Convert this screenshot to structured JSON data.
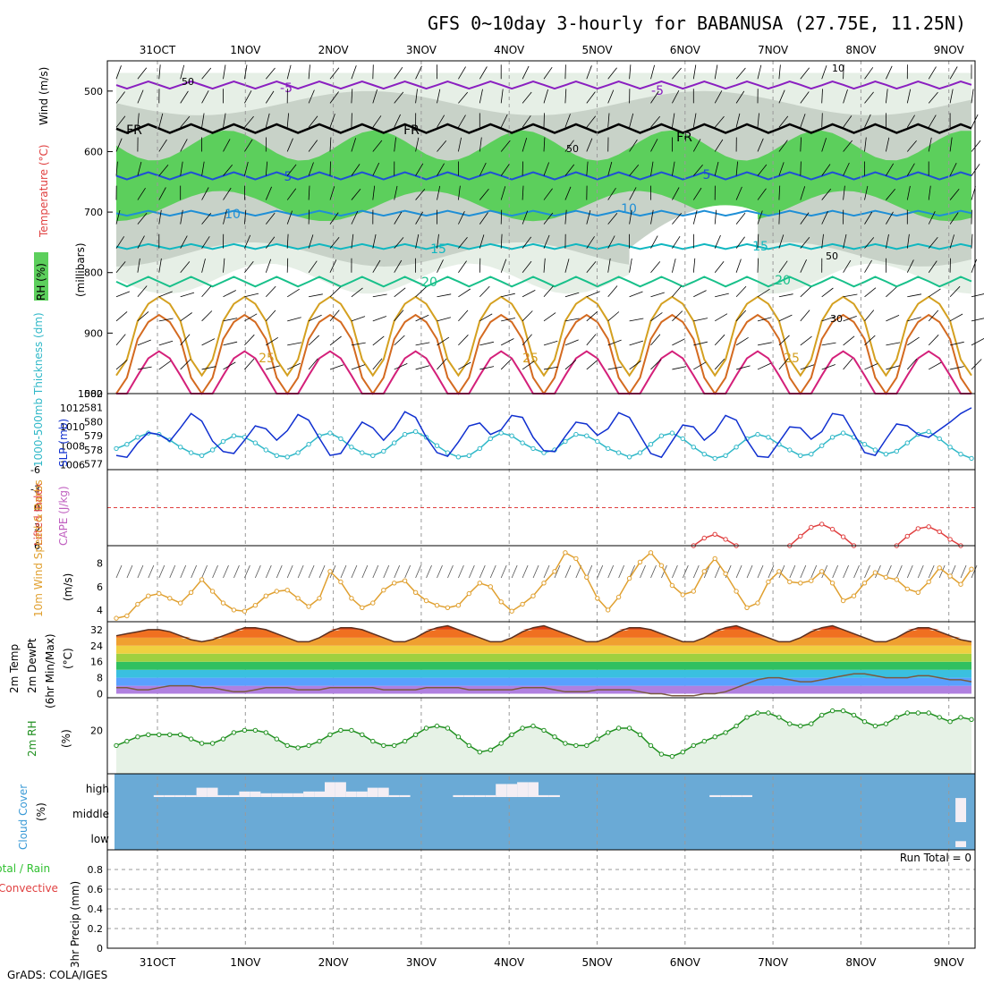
{
  "title": "GFS 0~10day 3-hourly for BABANUSA (27.75E, 11.25N)",
  "credit": "GrADS: COLA/IGES",
  "dates": [
    "31OCT",
    "1NOV",
    "2NOV",
    "3NOV",
    "4NOV",
    "5NOV",
    "6NOV",
    "7NOV",
    "8NOV",
    "9NOV"
  ],
  "colors": {
    "rh_green": "#5ccf5c",
    "rh_grey": "#c8d2c8",
    "rh_light": "#e6efe6",
    "temp_m5": "#8a1fc0",
    "temp_fr": "#000000",
    "temp_5": "#1f4fd6",
    "temp_10": "#1f8fd6",
    "temp_15": "#10b7c0",
    "temp_20": "#18c08a",
    "temp_25": "#d4a020",
    "temp_30": "#d46a20",
    "temp_35": "#d4207a",
    "thickness": "#30b8c8",
    "slp": "#1030d0",
    "lifted": "#e04040",
    "cape": "#c060c0",
    "wind10": "#e0a030",
    "rh2m": "#209020",
    "cloud_bg": "#6aaad6",
    "cloud_fill": "#f4eef4"
  },
  "panels": {
    "upper": {
      "label_rh": "RH (%)",
      "label_temp": "Temperature (°C)",
      "label_wind": "Wind (m/s)",
      "label_mb": "(millibars)",
      "yticks": [
        "500",
        "600",
        "700",
        "800",
        "900",
        "1000"
      ],
      "contour_labels": [
        "-5",
        "-5",
        "FR",
        "FR",
        "FR",
        "5",
        "5",
        "10",
        "10",
        "15",
        "15",
        "20",
        "20",
        "25",
        "25",
        "25",
        "50",
        "50",
        "50",
        "30",
        "10"
      ]
    },
    "thickness": {
      "label_thick": "1000-500mb Thickness (dm)",
      "label_slp": "SLP (mb)",
      "yticks_left": [
        "582",
        "581",
        "580",
        "579",
        "578",
        "577"
      ],
      "yticks_right": [
        "1012",
        "1010",
        "1008",
        "1006"
      ]
    },
    "stability": {
      "label_li": "Lifted Index",
      "label_cape": "CAPE (J/kg)",
      "yticks": [
        "-6",
        "-3",
        "0",
        "3",
        "6"
      ]
    },
    "wind10": {
      "label": "10m Wind Speed & Barbs",
      "unit": "(m/s)",
      "yticks": [
        "8",
        "6",
        "4"
      ]
    },
    "temp2m": {
      "label1": "2m Temp",
      "label2": "2m DewPt",
      "label3": "(6hr Min/Max)",
      "unit": "(°C)",
      "yticks": [
        "32",
        "24",
        "16",
        "8",
        "0"
      ]
    },
    "rh2m": {
      "label": "2m RH",
      "unit": "(%)",
      "yticks": [
        "20"
      ]
    },
    "cloud": {
      "label": "Cloud Cover",
      "unit": "(%)",
      "levels": [
        "high",
        "middle",
        "low"
      ]
    },
    "precip": {
      "label1": "Total / Rain",
      "label2": "Convective",
      "label3": "3hr Precip (mm)",
      "yticks": [
        "0.8",
        "0.6",
        "0.4",
        "0.2",
        "0"
      ],
      "run_total": "Run Total = 0"
    }
  },
  "chart_data": {
    "type": "line",
    "x_start": "2023-10-30 12Z",
    "x_step_hours": 3,
    "thickness_dm": [
      578.1,
      578.4,
      578.9,
      579.2,
      579.1,
      578.7,
      578.2,
      577.8,
      577.6,
      578.0,
      578.6,
      579.0,
      578.9,
      578.5,
      578.0,
      577.6,
      577.5,
      577.8,
      578.4,
      579.0,
      579.2,
      578.8,
      578.2,
      577.8,
      577.6,
      577.9,
      578.5,
      579.1,
      579.3,
      578.9,
      578.3,
      577.8,
      577.5,
      577.6,
      578.1,
      578.8,
      579.2,
      579.0,
      578.5,
      578.1,
      577.8,
      578.0,
      578.6,
      579.1,
      579.0,
      578.6,
      578.1,
      577.8,
      577.5,
      577.8,
      578.4,
      579.0,
      579.2,
      578.8,
      578.2,
      577.7,
      577.4,
      577.6,
      578.2,
      578.8,
      579.1,
      578.9,
      578.4,
      578.0,
      577.6,
      577.7,
      578.3,
      578.9,
      579.2,
      578.9,
      578.4,
      578.0,
      577.7,
      577.9,
      578.5,
      579.1,
      579.3,
      578.8,
      578.2,
      577.7,
      577.4
    ],
    "slp_mb": [
      1007.0,
      1006.8,
      1008.3,
      1009.4,
      1009.2,
      1008.5,
      1009.9,
      1011.4,
      1010.6,
      1008.5,
      1007.4,
      1007.2,
      1008.6,
      1010.1,
      1009.8,
      1008.6,
      1009.6,
      1011.3,
      1010.7,
      1008.8,
      1007.0,
      1007.2,
      1008.9,
      1010.5,
      1009.9,
      1008.6,
      1009.8,
      1011.6,
      1011.0,
      1008.9,
      1007.3,
      1006.9,
      1008.4,
      1010.1,
      1010.4,
      1009.2,
      1009.7,
      1011.2,
      1011.0,
      1008.9,
      1007.5,
      1007.4,
      1009.0,
      1010.5,
      1010.3,
      1009.1,
      1009.8,
      1011.5,
      1011.0,
      1009.1,
      1007.2,
      1006.8,
      1008.5,
      1010.2,
      1010.0,
      1008.6,
      1009.5,
      1011.2,
      1010.7,
      1008.6,
      1006.9,
      1006.8,
      1008.4,
      1010.0,
      1009.9,
      1008.7,
      1009.5,
      1011.4,
      1011.2,
      1009.3,
      1007.3,
      1007.0,
      1008.7,
      1010.3,
      1010.1,
      1009.2,
      1008.9,
      1009.7,
      1010.5,
      1011.4,
      1012.0
    ],
    "lifted_index": [
      null,
      null,
      null,
      null,
      null,
      null,
      null,
      null,
      null,
      null,
      null,
      null,
      null,
      null,
      null,
      null,
      null,
      null,
      null,
      null,
      null,
      null,
      null,
      null,
      null,
      null,
      null,
      null,
      null,
      null,
      null,
      null,
      null,
      null,
      null,
      null,
      null,
      null,
      null,
      null,
      null,
      null,
      null,
      null,
      null,
      null,
      null,
      null,
      null,
      null,
      null,
      null,
      null,
      null,
      6,
      4.8,
      4.2,
      5.0,
      6,
      null,
      null,
      null,
      null,
      6,
      4.5,
      3.1,
      2.6,
      3.4,
      4.6,
      6,
      null,
      null,
      null,
      6,
      4.5,
      3.3,
      3.0,
      3.8,
      5.0,
      6,
      null
    ],
    "wind10_ms": [
      3.3,
      3.5,
      4.5,
      5.2,
      5.4,
      5.0,
      4.6,
      5.5,
      6.6,
      5.6,
      4.6,
      4.0,
      3.9,
      4.4,
      5.2,
      5.6,
      5.7,
      5.0,
      4.3,
      5.0,
      7.3,
      6.4,
      5.0,
      4.2,
      4.6,
      5.7,
      6.3,
      6.5,
      5.5,
      4.8,
      4.4,
      4.2,
      4.4,
      5.4,
      6.3,
      6.0,
      4.7,
      3.9,
      4.5,
      5.2,
      6.3,
      7.3,
      8.9,
      8.4,
      6.8,
      5.0,
      4.0,
      5.1,
      6.7,
      8.1,
      8.9,
      7.8,
      6.1,
      5.3,
      5.6,
      7.3,
      8.4,
      7.1,
      5.6,
      4.2,
      4.6,
      6.4,
      7.3,
      6.4,
      6.3,
      6.5,
      7.3,
      6.3,
      4.8,
      5.2,
      6.3,
      7.2,
      6.8,
      6.6,
      5.8,
      5.5,
      6.4,
      7.6,
      6.9,
      6.2,
      7.5
    ],
    "temp2m_c": [
      29,
      30,
      31,
      32,
      32,
      31,
      29,
      27,
      26,
      27,
      29,
      31,
      33,
      33,
      32,
      30,
      28,
      26,
      26,
      28,
      31,
      33,
      33,
      32,
      30,
      28,
      26,
      26,
      28,
      31,
      33,
      34,
      32,
      30,
      28,
      26,
      26,
      28,
      31,
      33,
      34,
      32,
      30,
      28,
      26,
      26,
      28,
      31,
      33,
      33,
      32,
      30,
      28,
      26,
      26,
      28,
      31,
      33,
      34,
      32,
      30,
      28,
      26,
      26,
      28,
      31,
      33,
      34,
      32,
      30,
      28,
      26,
      26,
      28,
      31,
      33,
      33,
      31,
      29,
      27,
      26
    ],
    "dewpt2m_c": [
      3,
      3,
      2,
      2,
      3,
      4,
      4,
      4,
      3,
      3,
      2,
      1,
      1,
      2,
      3,
      3,
      3,
      2,
      2,
      2,
      3,
      3,
      3,
      3,
      3,
      2,
      2,
      2,
      2,
      3,
      3,
      3,
      3,
      2,
      2,
      2,
      2,
      2,
      3,
      3,
      3,
      2,
      1,
      1,
      1,
      2,
      2,
      2,
      2,
      1,
      0,
      0,
      -1,
      -1,
      -1,
      0,
      0,
      1,
      3,
      5,
      7,
      8,
      8,
      7,
      6,
      6,
      7,
      8,
      9,
      10,
      10,
      9,
      8,
      8,
      8,
      9,
      9,
      8,
      7,
      7,
      6
    ],
    "rh2m_pct": [
      13,
      15,
      17,
      18,
      18,
      18,
      18,
      16,
      14,
      14,
      16,
      19,
      20,
      20,
      19,
      16,
      13,
      12,
      13,
      15,
      18,
      20,
      20,
      18,
      15,
      13,
      13,
      15,
      18,
      21,
      22,
      21,
      17,
      13,
      10,
      11,
      14,
      18,
      21,
      22,
      20,
      17,
      14,
      13,
      13,
      16,
      19,
      21,
      21,
      18,
      13,
      9,
      8,
      10,
      13,
      15,
      17,
      19,
      22,
      26,
      28,
      28,
      26,
      23,
      22,
      23,
      27,
      29,
      29,
      27,
      24,
      22,
      23,
      26,
      28,
      28,
      28,
      26,
      24,
      26,
      25
    ],
    "precip_mm": [
      0,
      0,
      0,
      0,
      0,
      0,
      0,
      0,
      0,
      0,
      0,
      0,
      0,
      0,
      0,
      0,
      0,
      0,
      0,
      0,
      0,
      0,
      0,
      0,
      0,
      0,
      0,
      0,
      0,
      0,
      0,
      0,
      0,
      0,
      0,
      0,
      0,
      0,
      0,
      0,
      0,
      0,
      0,
      0,
      0,
      0,
      0,
      0,
      0,
      0,
      0,
      0,
      0,
      0,
      0,
      0,
      0,
      0,
      0,
      0,
      0,
      0,
      0,
      0,
      0,
      0,
      0,
      0,
      0,
      0,
      0,
      0,
      0,
      0,
      0,
      0,
      0,
      0,
      0,
      0,
      0
    ],
    "cloud_high": [
      0,
      0,
      0,
      0,
      5,
      5,
      5,
      5,
      25,
      25,
      5,
      5,
      15,
      15,
      10,
      10,
      10,
      10,
      15,
      15,
      40,
      40,
      15,
      15,
      25,
      25,
      5,
      5,
      0,
      0,
      0,
      0,
      5,
      5,
      5,
      5,
      35,
      35,
      40,
      40,
      5,
      5,
      0,
      0,
      0,
      0,
      0,
      0,
      0,
      0,
      0,
      0,
      0,
      0,
      0,
      0,
      5,
      5,
      5,
      5,
      0,
      0,
      0,
      0,
      0,
      0,
      0,
      0,
      0,
      0,
      0,
      0,
      0,
      0,
      0,
      0,
      0,
      0,
      0,
      0,
      0
    ],
    "cloud_mid": [
      0,
      0,
      0,
      0,
      0,
      0,
      0,
      0,
      0,
      0,
      0,
      0,
      0,
      0,
      0,
      0,
      0,
      0,
      0,
      0,
      0,
      0,
      0,
      0,
      0,
      0,
      0,
      0,
      0,
      0,
      0,
      0,
      0,
      0,
      0,
      0,
      0,
      0,
      0,
      0,
      0,
      0,
      0,
      0,
      0,
      0,
      0,
      0,
      0,
      0,
      0,
      0,
      0,
      0,
      0,
      0,
      0,
      0,
      0,
      0,
      0,
      0,
      0,
      0,
      0,
      0,
      0,
      0,
      0,
      0,
      0,
      0,
      0,
      0,
      0,
      0,
      0,
      0,
      0,
      60,
      0
    ],
    "cloud_low": [
      0,
      0,
      0,
      0,
      0,
      0,
      0,
      0,
      0,
      0,
      0,
      0,
      0,
      0,
      0,
      0,
      0,
      0,
      0,
      0,
      0,
      0,
      0,
      0,
      0,
      0,
      0,
      0,
      0,
      0,
      0,
      0,
      0,
      0,
      0,
      0,
      0,
      0,
      0,
      0,
      0,
      0,
      0,
      0,
      0,
      0,
      0,
      0,
      0,
      0,
      0,
      0,
      0,
      0,
      0,
      0,
      0,
      0,
      0,
      0,
      0,
      0,
      0,
      0,
      0,
      0,
      0,
      0,
      0,
      0,
      0,
      0,
      0,
      0,
      0,
      0,
      0,
      0,
      0,
      15,
      0
    ],
    "series": [
      {
        "name": "1000-500mb Thickness (dm)",
        "key": "thickness_dm"
      },
      {
        "name": "SLP (mb)",
        "key": "slp_mb"
      },
      {
        "name": "Lifted Index",
        "key": "lifted_index"
      },
      {
        "name": "10m Wind Speed",
        "key": "wind10_ms"
      },
      {
        "name": "2m Temp",
        "key": "temp2m_c"
      },
      {
        "name": "2m DewPt",
        "key": "dewpt2m_c"
      },
      {
        "name": "2m RH",
        "key": "rh2m_pct"
      },
      {
        "name": "3hr Precip (mm)",
        "key": "precip_mm"
      }
    ],
    "ylims": {
      "upper_mb": [
        1000,
        450
      ],
      "thickness_dm": [
        576.6,
        582
      ],
      "slp_mb": [
        1005.5,
        1013.5
      ],
      "li": [
        -6,
        6
      ],
      "wind10": [
        3,
        9.5
      ],
      "temp2m": [
        -2,
        36
      ],
      "rh2m": [
        0,
        35
      ],
      "precip": [
        0,
        1
      ]
    }
  }
}
